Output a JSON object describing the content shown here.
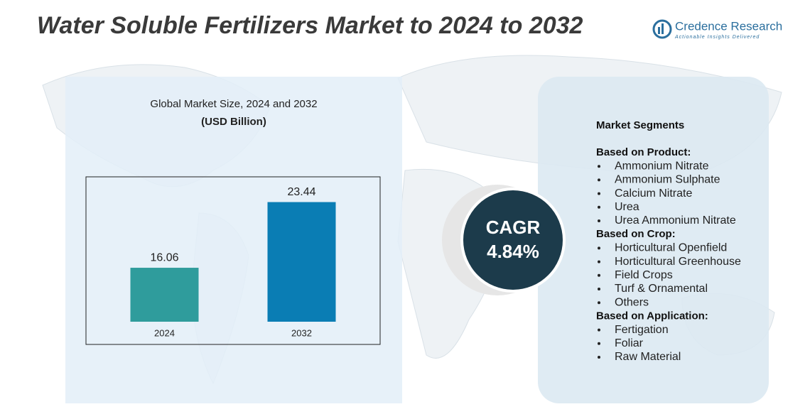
{
  "header": {
    "title": "Water Soluble Fertilizers Market to 2024 to 2032",
    "brand": "Credence Research",
    "tagline": "Actionable Insights Delivered"
  },
  "chart_data": {
    "type": "bar",
    "title": "Global Market Size, 2024 and 2032",
    "subtitle": "(USD Billion)",
    "categories": [
      "2024",
      "2032"
    ],
    "values": [
      16.06,
      23.44
    ],
    "colors": [
      "#2f9c9c",
      "#0a7db4"
    ],
    "ylim": [
      10,
      25
    ]
  },
  "cagr": {
    "label": "CAGR",
    "value": "4.84%"
  },
  "segments": {
    "title": "Market Segments",
    "groups": [
      {
        "heading": "Based on Product:",
        "items": [
          "Ammonium Nitrate",
          "Ammonium Sulphate",
          "Calcium Nitrate",
          "Urea",
          "Urea Ammonium Nitrate"
        ]
      },
      {
        "heading": "Based on Crop:",
        "items": [
          "Horticultural Openfield",
          "Horticultural Greenhouse",
          "Field Crops",
          "Turf & Ornamental",
          "Others"
        ]
      },
      {
        "heading": "Based on Application:",
        "items": [
          "Fertigation",
          "Foliar",
          "Raw Material"
        ]
      }
    ]
  }
}
